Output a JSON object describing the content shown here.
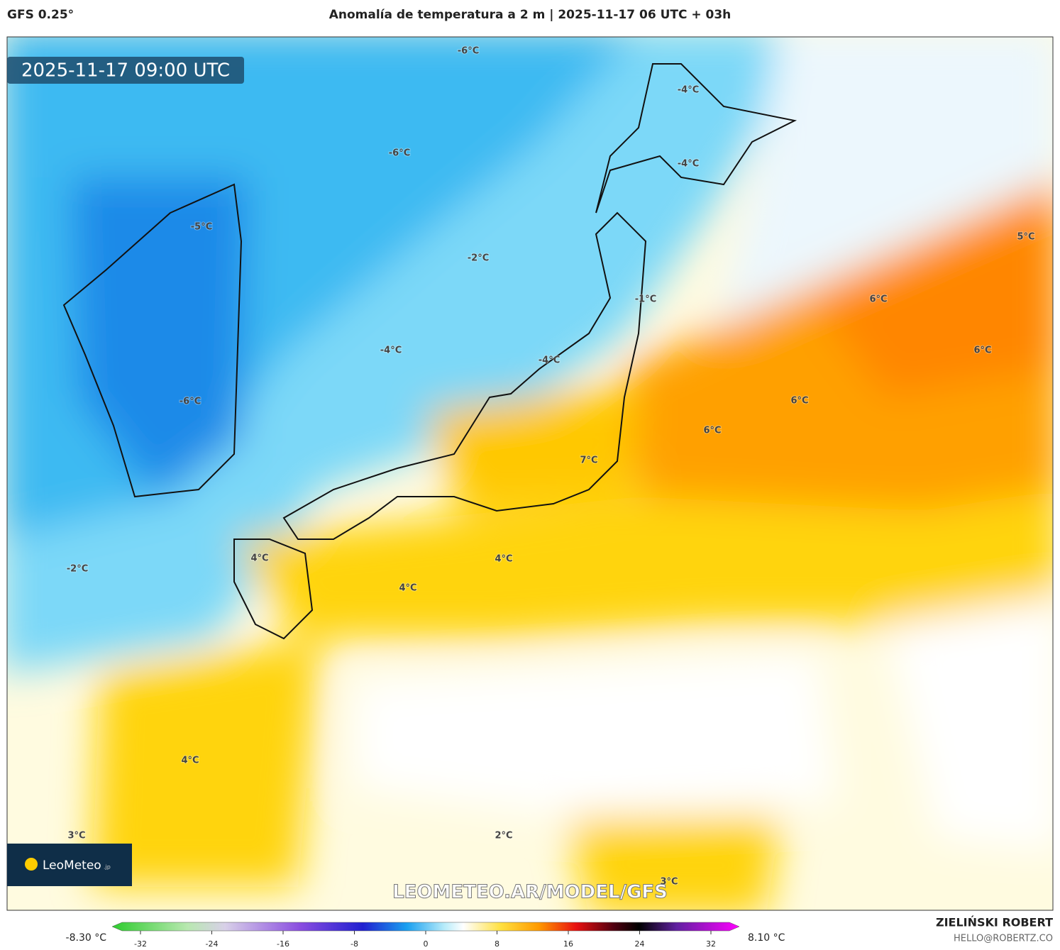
{
  "header": {
    "model": "GFS 0.25°",
    "title": "Anomalía de temperatura a 2 m | 2025-11-17 06 UTC + 03h"
  },
  "timestamp": "2025-11-17 09:00 UTC",
  "map_labels": [
    "-6°C",
    "-4°C",
    "-6°C",
    "-4°C",
    "-5°C",
    "-2°C",
    "-1°C",
    "6°C",
    "5°C",
    "-4°C",
    "-4°C",
    "6°C",
    "6°C",
    "-6°C",
    "6°C",
    "7°C",
    "4°C",
    "4°C",
    "-2°C",
    "4°C",
    "4°C",
    "3°C",
    "2°C",
    "3°C"
  ],
  "logo": {
    "name": "LeoMeteo",
    "suffix": ".jp"
  },
  "watermark": "LEOMETEO.AR/MODEL/GFS",
  "colorbar": {
    "min_label": "-8.30 °C",
    "max_label": "8.10 °C",
    "ticks": [
      -32,
      -24,
      -16,
      -8,
      0,
      8,
      16,
      24,
      32
    ]
  },
  "credit": {
    "author": "ZIELIŃSKI ROBERT",
    "email": "HELLO@ROBERTZ.CO"
  }
}
